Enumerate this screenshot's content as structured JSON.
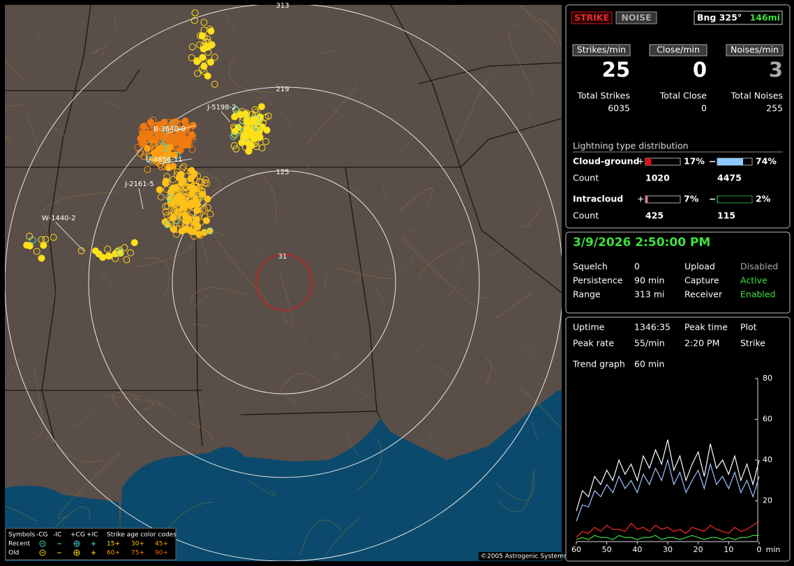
{
  "header": {
    "strike_button": "STRIKE",
    "noise_button": "NOISE",
    "bearing": "Bng 325°",
    "distance": "146mi"
  },
  "rates": [
    {
      "label": "Strikes/min",
      "value": 25
    },
    {
      "label": "Close/min",
      "value": 0
    },
    {
      "label": "Noises/min",
      "value": 3
    }
  ],
  "totals": [
    {
      "label": "Total Strikes",
      "value": 6035
    },
    {
      "label": "Total Close",
      "value": 0
    },
    {
      "label": "Total Noises",
      "value": 255
    }
  ],
  "distribution": {
    "title": "Lightning type distribution",
    "count_label": "Count",
    "plus": "+",
    "minus": "−",
    "rows": [
      {
        "name": "Cloud-ground",
        "positive": {
          "value": 17,
          "label": "17%"
        },
        "negative": {
          "value": 74,
          "label": "74%"
        },
        "positive_count": 1020,
        "negative_count": 4475
      },
      {
        "name": "Intracloud",
        "positive": {
          "value": 7,
          "label": "7%"
        },
        "negative": {
          "value": 2,
          "label": "2%"
        },
        "positive_count": 425,
        "negative_count": 115
      }
    ]
  },
  "status": {
    "datetime": "3/9/2026 2:50:00 PM",
    "rows": [
      [
        "Squelch",
        "0",
        "Upload",
        "Disabled"
      ],
      [
        "Persistence",
        "90 min",
        "Capture",
        "Active"
      ],
      [
        "Range",
        "313 mi",
        "Receiver",
        "Enabled"
      ]
    ]
  },
  "stats": {
    "rows": [
      [
        "Uptime",
        "1346:35",
        "Peak time",
        "Plot"
      ],
      [
        "Peak rate",
        "55/min",
        "2:20 PM",
        "Strike"
      ],
      [
        "Trend graph",
        "60 min"
      ]
    ]
  },
  "map": {
    "range_labels": [
      "313",
      "219",
      "125",
      "31"
    ],
    "storm_labels": [
      "B-3640-9",
      "U-4856-11",
      "J-2161-5",
      "J-5198-2",
      "W-1440-2"
    ],
    "copyright": "©2005 Astrogenic Systems",
    "legend": {
      "symbols": "Symbols",
      "types": [
        "-CG",
        "-IC",
        "+CG",
        "+IC"
      ],
      "age_title": "Strike age color codes",
      "rows": [
        "Recent",
        "Old"
      ],
      "ages": [
        [
          "15+",
          "30+",
          "45+"
        ],
        [
          "60+",
          "75+",
          "90+"
        ]
      ]
    }
  },
  "chart_data": {
    "type": "line",
    "xlabel": "min",
    "x": [
      60,
      58,
      56,
      54,
      52,
      50,
      48,
      46,
      44,
      42,
      40,
      38,
      36,
      34,
      32,
      30,
      28,
      26,
      24,
      22,
      20,
      18,
      16,
      14,
      12,
      10,
      8,
      6,
      4,
      2,
      0
    ],
    "xlim": [
      60,
      0
    ],
    "xticks": [
      60,
      50,
      40,
      30,
      20,
      10,
      0
    ],
    "ylim": [
      0,
      80
    ],
    "yticks": [
      20,
      40,
      60,
      80
    ],
    "series": [
      {
        "color": "#ffffff",
        "values": [
          15,
          25,
          22,
          32,
          28,
          35,
          30,
          40,
          33,
          38,
          30,
          42,
          36,
          45,
          38,
          50,
          35,
          42,
          30,
          38,
          44,
          32,
          48,
          36,
          40,
          33,
          42,
          30,
          38,
          28,
          40
        ]
      },
      {
        "color": "#9ec4ff",
        "values": [
          10,
          18,
          17,
          25,
          22,
          28,
          24,
          32,
          26,
          30,
          24,
          33,
          28,
          36,
          30,
          40,
          28,
          34,
          24,
          30,
          35,
          26,
          38,
          28,
          32,
          26,
          34,
          24,
          30,
          22,
          32
        ]
      },
      {
        "color": "#ff2a2a",
        "values": [
          2,
          5,
          4,
          7,
          5,
          8,
          6,
          6,
          5,
          9,
          6,
          7,
          5,
          8,
          6,
          7,
          5,
          6,
          4,
          7,
          6,
          5,
          8,
          6,
          5,
          4,
          7,
          5,
          6,
          8,
          10
        ]
      },
      {
        "color": "#3fdc3f",
        "values": [
          1,
          2,
          1,
          3,
          2,
          2,
          1,
          3,
          2,
          2,
          1,
          2,
          2,
          3,
          1,
          2,
          2,
          1,
          2,
          3,
          2,
          1,
          2,
          2,
          1,
          2,
          1,
          2,
          2,
          3,
          3
        ]
      }
    ]
  }
}
